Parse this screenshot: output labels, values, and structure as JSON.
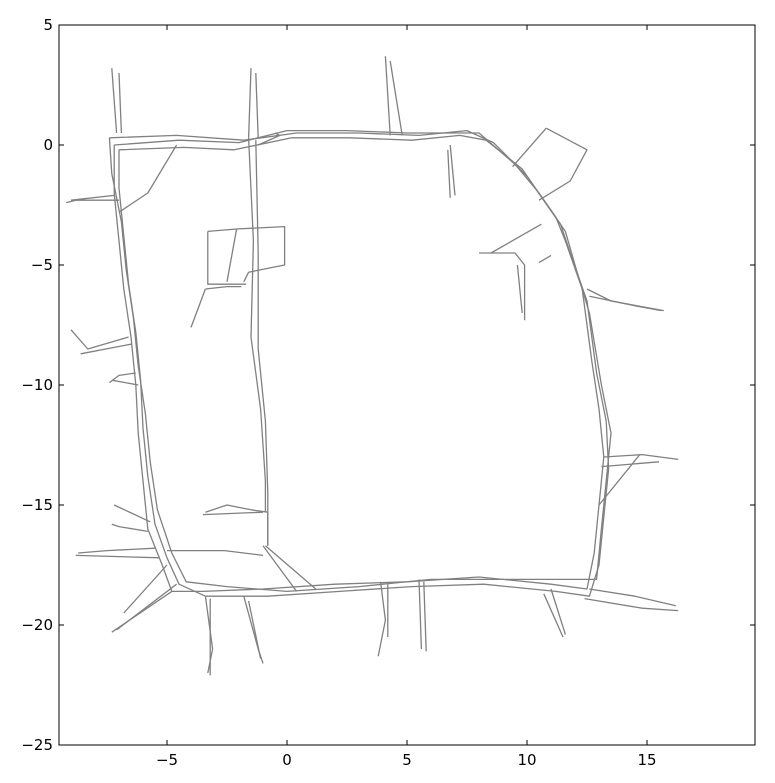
{
  "chart_data": {
    "type": "line",
    "title": "",
    "xlabel": "",
    "ylabel": "",
    "xlim": [
      -9.5,
      19.5
    ],
    "ylim": [
      -25,
      5
    ],
    "xticks": [
      -5,
      0,
      5,
      10,
      15
    ],
    "yticks": [
      5,
      0,
      -5,
      -10,
      -15,
      -20,
      -25
    ],
    "grid": false,
    "line_color": "#808080",
    "series": [
      {
        "name": "",
        "segments": [
          [
            [
              -7.2,
              0
            ],
            [
              -4.5,
              0.2
            ],
            [
              -2,
              0.1
            ],
            [
              0,
              0.6
            ],
            [
              2.5,
              0.6
            ],
            [
              5,
              0.5
            ],
            [
              7,
              0.5
            ],
            [
              8,
              0.5
            ],
            [
              9.5,
              -0.8
            ],
            [
              10.5,
              -2
            ],
            [
              11.2,
              -3
            ],
            [
              11.6,
              -4
            ],
            [
              12.3,
              -6
            ],
            [
              12.7,
              -9
            ],
            [
              13,
              -11
            ],
            [
              13.2,
              -13
            ],
            [
              13,
              -15
            ],
            [
              12.8,
              -17
            ],
            [
              12.5,
              -18.5
            ],
            [
              11,
              -18.3
            ],
            [
              8,
              -18
            ],
            [
              5,
              -18.2
            ],
            [
              2,
              -18.3
            ],
            [
              -1,
              -18.5
            ],
            [
              -3.5,
              -18.6
            ],
            [
              -4.8,
              -18.6
            ],
            [
              -5.2,
              -17.5
            ],
            [
              -5.8,
              -16
            ],
            [
              -6,
              -14
            ],
            [
              -6.2,
              -12
            ],
            [
              -6.3,
              -10
            ],
            [
              -6.5,
              -8
            ],
            [
              -6.8,
              -6
            ],
            [
              -7,
              -4
            ],
            [
              -7.2,
              -2
            ],
            [
              -7.2,
              0
            ]
          ],
          [
            [
              -7,
              -0.2
            ],
            [
              -4.3,
              -0.1
            ],
            [
              -2.2,
              -0.2
            ],
            [
              0.2,
              0.3
            ],
            [
              2.6,
              0.3
            ],
            [
              5.2,
              0.2
            ],
            [
              7.2,
              0.4
            ],
            [
              8.3,
              0.2
            ],
            [
              9.8,
              -1
            ],
            [
              10.7,
              -2.3
            ],
            [
              11.4,
              -3.3
            ],
            [
              11.8,
              -4.5
            ],
            [
              12.5,
              -6.5
            ],
            [
              12.9,
              -9.5
            ],
            [
              13.3,
              -11.5
            ],
            [
              13.4,
              -13.5
            ],
            [
              13.2,
              -15.5
            ],
            [
              13,
              -17.5
            ],
            [
              12.6,
              -18.8
            ],
            [
              11.2,
              -18.6
            ],
            [
              8.2,
              -18.3
            ],
            [
              5.2,
              -18.4
            ],
            [
              2.2,
              -18.6
            ],
            [
              -0.8,
              -18.8
            ],
            [
              -3.4,
              -18.8
            ],
            [
              -4.5,
              -18.3
            ],
            [
              -5,
              -17.2
            ],
            [
              -5.5,
              -15.8
            ],
            [
              -5.8,
              -13.8
            ],
            [
              -6,
              -11.8
            ],
            [
              -6.1,
              -9.8
            ],
            [
              -6.3,
              -7.8
            ],
            [
              -6.6,
              -5.8
            ],
            [
              -6.8,
              -3.8
            ],
            [
              -7,
              -1.8
            ],
            [
              -7,
              -0.2
            ]
          ],
          [
            [
              -7.4,
              0.3
            ],
            [
              -4.6,
              0.4
            ],
            [
              -1.8,
              0.2
            ],
            [
              0.4,
              0.5
            ],
            [
              3,
              0.5
            ],
            [
              5.5,
              0.4
            ],
            [
              7.5,
              0.6
            ],
            [
              8.6,
              0.1
            ],
            [
              10,
              -1.3
            ],
            [
              10.9,
              -2.6
            ],
            [
              11.6,
              -3.6
            ],
            [
              12,
              -5
            ],
            [
              12.6,
              -7
            ],
            [
              13.1,
              -10
            ],
            [
              13.5,
              -12
            ],
            [
              13.3,
              -14
            ],
            [
              13.1,
              -16
            ],
            [
              12.9,
              -18.1
            ],
            [
              12,
              -18.1
            ],
            [
              9,
              -18.1
            ],
            [
              6,
              -18.1
            ],
            [
              3,
              -18.4
            ],
            [
              0,
              -18.6
            ],
            [
              -2.5,
              -18.4
            ],
            [
              -4.2,
              -18.2
            ],
            [
              -4.8,
              -17
            ],
            [
              -5.4,
              -15.2
            ],
            [
              -5.7,
              -13.2
            ],
            [
              -5.9,
              -11.2
            ],
            [
              -6.2,
              -9.2
            ],
            [
              -6.4,
              -7.2
            ],
            [
              -6.7,
              -5.2
            ],
            [
              -6.9,
              -3.2
            ],
            [
              -7.3,
              -1.2
            ],
            [
              -7.4,
              0.3
            ]
          ],
          [
            [
              -7.3,
              3.2
            ],
            [
              -7.1,
              0.5
            ]
          ],
          [
            [
              -7.0,
              3.0
            ],
            [
              -6.9,
              0.5
            ]
          ],
          [
            [
              -1.5,
              3.2
            ],
            [
              -1.6,
              0.3
            ]
          ],
          [
            [
              -1.3,
              3.0
            ],
            [
              -1.2,
              0.3
            ]
          ],
          [
            [
              4.1,
              3.7
            ],
            [
              4.3,
              0.4
            ]
          ],
          [
            [
              4.3,
              3.5
            ],
            [
              4.8,
              0.4
            ]
          ],
          [
            [
              10.8,
              0.7
            ],
            [
              12.5,
              -0.2
            ],
            [
              11.8,
              -1.5
            ],
            [
              10.5,
              -2.3
            ]
          ],
          [
            [
              9.4,
              -0.9
            ],
            [
              10.8,
              0.7
            ]
          ],
          [
            [
              8.0,
              -4.5
            ],
            [
              9.5,
              -4.5
            ],
            [
              9.9,
              -5.0
            ],
            [
              9.9,
              -7.3
            ]
          ],
          [
            [
              9.6,
              -5.0
            ],
            [
              9.8,
              -7.0
            ]
          ],
          [
            [
              10.5,
              -4.9
            ],
            [
              11.0,
              -4.6
            ]
          ],
          [
            [
              8.5,
              -4.5
            ],
            [
              10.6,
              -3.3
            ]
          ],
          [
            [
              12.5,
              -6
            ],
            [
              13.5,
              -6.5
            ],
            [
              15.7,
              -6.9
            ]
          ],
          [
            [
              12.6,
              -6.3
            ],
            [
              14.5,
              -6.7
            ],
            [
              15.6,
              -6.9
            ]
          ],
          [
            [
              13.2,
              -13
            ],
            [
              14.8,
              -12.9
            ],
            [
              16.3,
              -13.1
            ]
          ],
          [
            [
              13.1,
              -13.4
            ],
            [
              15.5,
              -13.2
            ]
          ],
          [
            [
              13.0,
              -15.0
            ],
            [
              14.7,
              -12.9
            ]
          ],
          [
            [
              12.6,
              -18.5
            ],
            [
              14.5,
              -18.8
            ],
            [
              16.2,
              -19.2
            ]
          ],
          [
            [
              12.4,
              -18.9
            ],
            [
              14.8,
              -19.3
            ],
            [
              16.3,
              -19.4
            ]
          ],
          [
            [
              10.7,
              -18.7
            ],
            [
              11.5,
              -20.5
            ]
          ],
          [
            [
              11.0,
              -18.5
            ],
            [
              11.6,
              -20.4
            ]
          ],
          [
            [
              5.5,
              -18.1
            ],
            [
              5.6,
              -21.0
            ]
          ],
          [
            [
              5.7,
              -18.2
            ],
            [
              5.8,
              -21.1
            ]
          ],
          [
            [
              3.9,
              -18.2
            ],
            [
              4.1,
              -19.8
            ],
            [
              3.8,
              -21.3
            ]
          ],
          [
            [
              4.2,
              -18.3
            ],
            [
              4.2,
              -20.5
            ]
          ],
          [
            [
              -3.2,
              -18.9
            ],
            [
              -3.2,
              -22.1
            ]
          ],
          [
            [
              -3.4,
              -18.8
            ],
            [
              -3.1,
              -21.0
            ],
            [
              -3.3,
              -22.0
            ]
          ],
          [
            [
              -1.8,
              -18.8
            ],
            [
              -1.2,
              -21.0
            ],
            [
              -1.0,
              -21.6
            ]
          ],
          [
            [
              -1.6,
              -19.0
            ],
            [
              -1.1,
              -21.4
            ]
          ],
          [
            [
              -4.8,
              -18.6
            ],
            [
              -7.3,
              -20.3
            ]
          ],
          [
            [
              -4.6,
              -18.3
            ],
            [
              -7.1,
              -20.2
            ]
          ],
          [
            [
              -5.0,
              -17.5
            ],
            [
              -6.8,
              -19.5
            ]
          ],
          [
            [
              -5.3,
              -17.2
            ],
            [
              -8.8,
              -17.1
            ]
          ],
          [
            [
              -5.5,
              -16.8
            ],
            [
              -7.5,
              -16.9
            ],
            [
              -8.7,
              -17.0
            ]
          ],
          [
            [
              -5.8,
              -16.1
            ],
            [
              -7.0,
              -15.9
            ],
            [
              -7.3,
              -15.8
            ]
          ],
          [
            [
              -5.7,
              -15.7
            ],
            [
              -7.2,
              -15.0
            ]
          ],
          [
            [
              -6.2,
              -10.0
            ],
            [
              -7.3,
              -9.8
            ]
          ],
          [
            [
              -6.3,
              -9.5
            ],
            [
              -7.0,
              -9.6
            ],
            [
              -7.4,
              -9.9
            ]
          ],
          [
            [
              -6.6,
              -8.0
            ],
            [
              -8.3,
              -8.5
            ],
            [
              -9.0,
              -7.7
            ]
          ],
          [
            [
              -6.5,
              -8.3
            ],
            [
              -8.6,
              -8.7
            ]
          ],
          [
            [
              -7.0,
              -2.3
            ],
            [
              -8.8,
              -2.3
            ],
            [
              -9.2,
              -2.4
            ]
          ],
          [
            [
              -7.2,
              -2.1
            ],
            [
              -9.0,
              -2.3
            ]
          ],
          [
            [
              -4.6,
              0.0
            ],
            [
              -5.8,
              -2.0
            ],
            [
              -7.0,
              -2.8
            ]
          ],
          [
            [
              -3.3,
              -3.6
            ],
            [
              -2.1,
              -3.5
            ],
            [
              -0.1,
              -3.4
            ],
            [
              -0.1,
              -5.0
            ],
            [
              -0.6,
              -5.1
            ],
            [
              -1.6,
              -5.3
            ],
            [
              -1.8,
              -5.7
            ]
          ],
          [
            [
              -3.3,
              -3.6
            ],
            [
              -3.3,
              -5.8
            ],
            [
              -1.7,
              -5.8
            ]
          ],
          [
            [
              -2.1,
              -3.5
            ],
            [
              -2.5,
              -5.7
            ]
          ],
          [
            [
              -3.4,
              -6.0
            ],
            [
              -4.0,
              -7.6
            ]
          ],
          [
            [
              -3.4,
              -6.0
            ],
            [
              -2.5,
              -5.9
            ],
            [
              -1.9,
              -5.9
            ]
          ],
          [
            [
              -3.4,
              -15.3
            ],
            [
              -2.5,
              -15.0
            ],
            [
              -1.5,
              -15.2
            ],
            [
              -0.8,
              -15.3
            ],
            [
              -0.8,
              -16.7
            ]
          ],
          [
            [
              -3.5,
              -15.4
            ],
            [
              -1.0,
              -15.3
            ]
          ],
          [
            [
              -5.0,
              -16.9
            ],
            [
              -2.6,
              -16.9
            ],
            [
              -1.0,
              -17.1
            ]
          ],
          [
            [
              -0.9,
              -16.7
            ],
            [
              1.2,
              -18.5
            ]
          ],
          [
            [
              -1.0,
              -16.7
            ],
            [
              0.4,
              -18.6
            ]
          ],
          [
            [
              -1.6,
              0.3
            ],
            [
              -1.4,
              -4.0
            ],
            [
              -1.5,
              -8.0
            ],
            [
              -1.1,
              -11.0
            ],
            [
              -0.9,
              -14.0
            ],
            [
              -0.9,
              -15.3
            ]
          ],
          [
            [
              -1.3,
              0.2
            ],
            [
              -1.2,
              -4.5
            ],
            [
              -1.2,
              -8.5
            ],
            [
              -0.9,
              -11.5
            ],
            [
              -0.8,
              -14.5
            ],
            [
              -0.8,
              -16.7
            ]
          ],
          [
            [
              -1.2,
              0.0
            ],
            [
              -0.3,
              0.4
            ],
            [
              -0.5,
              0.5
            ]
          ],
          [
            [
              6.8,
              0.0
            ],
            [
              7.0,
              -2.1
            ]
          ],
          [
            [
              6.7,
              -0.2
            ],
            [
              6.8,
              -2.2
            ]
          ]
        ]
      }
    ]
  }
}
